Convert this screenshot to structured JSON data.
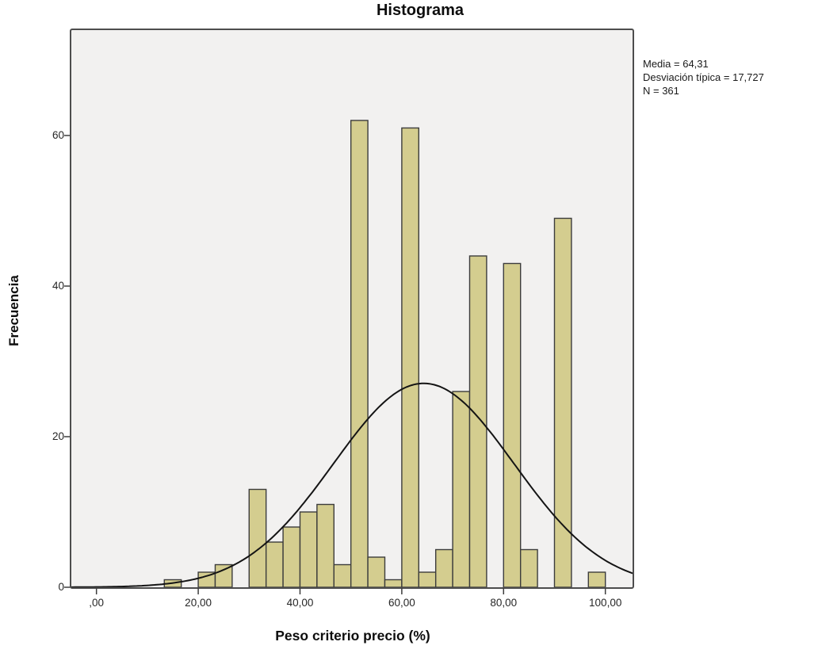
{
  "title": "Histograma",
  "stats": {
    "media": "Media = 64,31",
    "desviacion": "Desviación típica = 17,727",
    "n": "N = 361"
  },
  "axes": {
    "x_label": "Peso criterio precio (%)",
    "y_label": "Frecuencia",
    "x_ticks": [
      {
        "value": 0,
        "label": ",00"
      },
      {
        "value": 20,
        "label": "20,00"
      },
      {
        "value": 40,
        "label": "40,00"
      },
      {
        "value": 60,
        "label": "60,00"
      },
      {
        "value": 80,
        "label": "80,00"
      },
      {
        "value": 100,
        "label": "100,00"
      }
    ],
    "y_ticks": [
      {
        "value": 0,
        "label": "0"
      },
      {
        "value": 20,
        "label": "20"
      },
      {
        "value": 40,
        "label": "40"
      },
      {
        "value": 60,
        "label": "60"
      }
    ]
  },
  "chart_data": {
    "type": "bar",
    "subtype": "histogram",
    "title": "Histograma",
    "xlabel": "Peso criterio precio (%)",
    "ylabel": "Frecuencia",
    "xlim": [
      -5.09,
      105.5
    ],
    "ylim": [
      0,
      74.1
    ],
    "grid": false,
    "bin_width": 3.333,
    "bins": [
      {
        "start": 13.333,
        "count": 1
      },
      {
        "start": 20,
        "count": 2
      },
      {
        "start": 23.333,
        "count": 3
      },
      {
        "start": 30,
        "count": 13
      },
      {
        "start": 33.333,
        "count": 6
      },
      {
        "start": 36.667,
        "count": 8
      },
      {
        "start": 40,
        "count": 10
      },
      {
        "start": 43.333,
        "count": 11
      },
      {
        "start": 46.667,
        "count": 3
      },
      {
        "start": 50,
        "count": 62
      },
      {
        "start": 53.333,
        "count": 4
      },
      {
        "start": 56.667,
        "count": 1
      },
      {
        "start": 60,
        "count": 61
      },
      {
        "start": 63.333,
        "count": 2
      },
      {
        "start": 66.667,
        "count": 5
      },
      {
        "start": 70,
        "count": 26
      },
      {
        "start": 73.333,
        "count": 44
      },
      {
        "start": 80,
        "count": 43
      },
      {
        "start": 83.333,
        "count": 5
      },
      {
        "start": 90,
        "count": 49
      },
      {
        "start": 96.667,
        "count": 2
      }
    ],
    "normal_curve": {
      "mean": 64.31,
      "sd": 17.727,
      "n": 361
    }
  },
  "style": {
    "bar_fill": "#d4cd8f",
    "bar_stroke": "#3c3c3c",
    "plot_bg": "#f2f1f0",
    "frame_stroke": "#4d4d4d",
    "curve_stroke": "#141414",
    "tick_stroke": "#3d3d3d"
  }
}
